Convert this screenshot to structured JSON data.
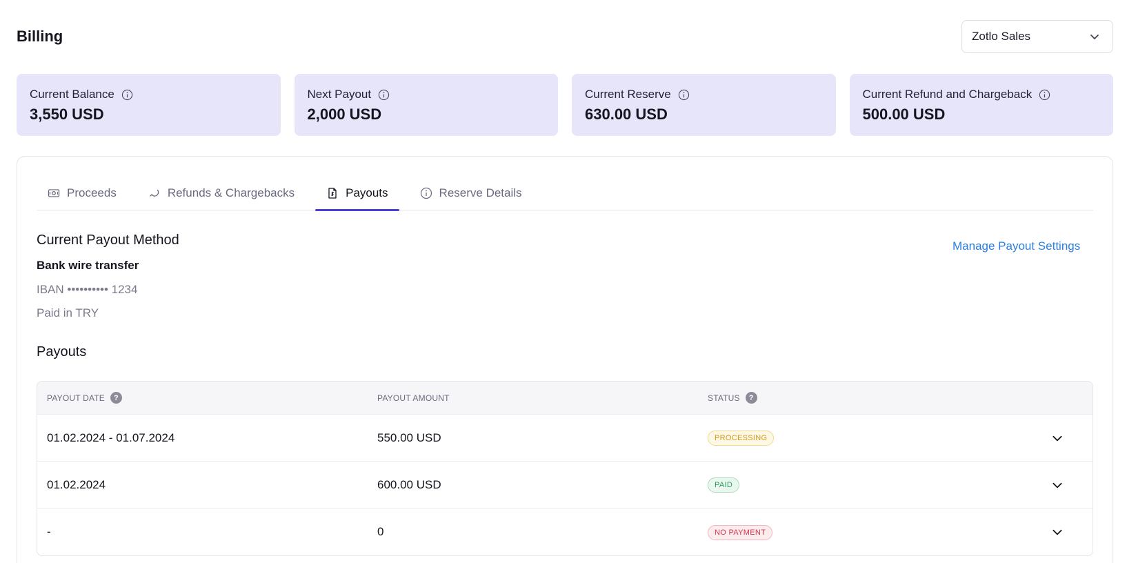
{
  "header": {
    "title": "Billing",
    "account_select": {
      "value": "Zotlo Sales"
    }
  },
  "cards": [
    {
      "label": "Current Balance",
      "value": "3,550 USD"
    },
    {
      "label": "Next Payout",
      "value": "2,000 USD"
    },
    {
      "label": "Current Reserve",
      "value": "630.00 USD"
    },
    {
      "label": "Current Refund and Chargeback",
      "value": "500.00 USD"
    }
  ],
  "tabs": [
    {
      "label": "Proceeds",
      "icon": "money-icon"
    },
    {
      "label": "Refunds & Chargebacks",
      "icon": "refund-icon"
    },
    {
      "label": "Payouts",
      "icon": "payout-document-icon",
      "active": true
    },
    {
      "label": "Reserve Details",
      "icon": "info-icon"
    }
  ],
  "payout_method": {
    "title": "Current Payout Method",
    "name": "Bank wire transfer",
    "iban": "IBAN •••••••••• 1234",
    "currency": "Paid in TRY",
    "manage_link": "Manage Payout Settings"
  },
  "payouts": {
    "title": "Payouts",
    "columns": [
      "Payout Date",
      "Payout Amount",
      "Status"
    ],
    "help_mark": "?",
    "rows": [
      {
        "date": "01.02.2024 - 01.07.2024",
        "amount": "550.00 USD",
        "status": "Processing"
      },
      {
        "date": "01.02.2024",
        "amount": "600.00 USD",
        "status": "Paid"
      },
      {
        "date": "-",
        "amount": "0",
        "status": "No Payment"
      }
    ]
  },
  "colors": {
    "accent": "#4b3fd6",
    "card_bg": "#e7e5fa",
    "link": "#2a7fe0",
    "status_processing": "#d39a1c",
    "status_paid": "#2f9e5f",
    "status_no_payment": "#d6344a"
  }
}
